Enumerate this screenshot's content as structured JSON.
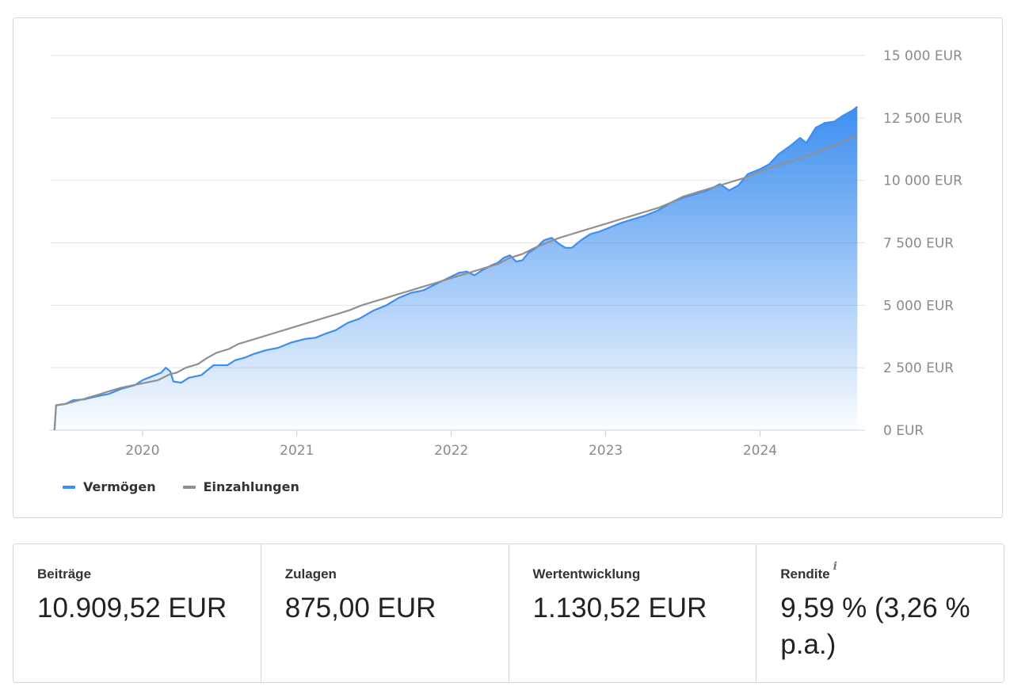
{
  "chart_data": {
    "type": "area",
    "x_ticks": [
      "2020",
      "2021",
      "2022",
      "2023",
      "2024"
    ],
    "y_ticks": [
      "15 000 EUR",
      "12 500 EUR",
      "10 000 EUR",
      "7 500 EUR",
      "5 000 EUR",
      "2 500 EUR",
      "0 EUR"
    ],
    "ylim": [
      0,
      15000
    ],
    "xlim": [
      2019.4,
      2024.68
    ],
    "legend_position": "bottom-left",
    "grid": true,
    "series": [
      {
        "name": "Vermögen",
        "color": "#3d8ef0",
        "fill": "gradient",
        "points": [
          [
            2019.43,
            0
          ],
          [
            2019.44,
            1000
          ],
          [
            2019.5,
            1050
          ],
          [
            2019.55,
            1200
          ],
          [
            2019.62,
            1230
          ],
          [
            2019.7,
            1350
          ],
          [
            2019.78,
            1450
          ],
          [
            2019.86,
            1650
          ],
          [
            2019.95,
            1800
          ],
          [
            2020.0,
            2000
          ],
          [
            2020.06,
            2150
          ],
          [
            2020.12,
            2300
          ],
          [
            2020.15,
            2500
          ],
          [
            2020.18,
            2350
          ],
          [
            2020.2,
            1950
          ],
          [
            2020.25,
            1900
          ],
          [
            2020.3,
            2100
          ],
          [
            2020.38,
            2200
          ],
          [
            2020.46,
            2600
          ],
          [
            2020.55,
            2600
          ],
          [
            2020.6,
            2800
          ],
          [
            2020.66,
            2900
          ],
          [
            2020.72,
            3050
          ],
          [
            2020.8,
            3200
          ],
          [
            2020.88,
            3300
          ],
          [
            2020.96,
            3500
          ],
          [
            2021.05,
            3650
          ],
          [
            2021.12,
            3700
          ],
          [
            2021.18,
            3850
          ],
          [
            2021.25,
            4000
          ],
          [
            2021.33,
            4300
          ],
          [
            2021.4,
            4450
          ],
          [
            2021.5,
            4800
          ],
          [
            2021.58,
            5000
          ],
          [
            2021.66,
            5300
          ],
          [
            2021.74,
            5500
          ],
          [
            2021.82,
            5600
          ],
          [
            2021.9,
            5850
          ],
          [
            2022.0,
            6150
          ],
          [
            2022.05,
            6300
          ],
          [
            2022.1,
            6350
          ],
          [
            2022.15,
            6200
          ],
          [
            2022.2,
            6400
          ],
          [
            2022.26,
            6600
          ],
          [
            2022.3,
            6700
          ],
          [
            2022.34,
            6900
          ],
          [
            2022.38,
            7000
          ],
          [
            2022.42,
            6750
          ],
          [
            2022.46,
            6800
          ],
          [
            2022.5,
            7100
          ],
          [
            2022.55,
            7300
          ],
          [
            2022.6,
            7600
          ],
          [
            2022.65,
            7700
          ],
          [
            2022.7,
            7450
          ],
          [
            2022.74,
            7300
          ],
          [
            2022.78,
            7300
          ],
          [
            2022.84,
            7600
          ],
          [
            2022.9,
            7850
          ],
          [
            2022.96,
            7950
          ],
          [
            2023.02,
            8100
          ],
          [
            2023.1,
            8300
          ],
          [
            2023.18,
            8450
          ],
          [
            2023.26,
            8600
          ],
          [
            2023.34,
            8800
          ],
          [
            2023.42,
            9100
          ],
          [
            2023.5,
            9300
          ],
          [
            2023.58,
            9450
          ],
          [
            2023.66,
            9600
          ],
          [
            2023.74,
            9850
          ],
          [
            2023.8,
            9600
          ],
          [
            2023.86,
            9800
          ],
          [
            2023.92,
            10250
          ],
          [
            2024.0,
            10450
          ],
          [
            2024.06,
            10650
          ],
          [
            2024.12,
            11050
          ],
          [
            2024.2,
            11400
          ],
          [
            2024.26,
            11700
          ],
          [
            2024.3,
            11500
          ],
          [
            2024.36,
            12100
          ],
          [
            2024.42,
            12300
          ],
          [
            2024.48,
            12350
          ],
          [
            2024.54,
            12600
          ],
          [
            2024.6,
            12800
          ],
          [
            2024.63,
            12950
          ]
        ]
      },
      {
        "name": "Einzahlungen",
        "color": "#909090",
        "fill": "none",
        "points": [
          [
            2019.43,
            0
          ],
          [
            2019.44,
            1000
          ],
          [
            2019.5,
            1050
          ],
          [
            2019.56,
            1150
          ],
          [
            2019.62,
            1250
          ],
          [
            2019.7,
            1400
          ],
          [
            2019.78,
            1550
          ],
          [
            2019.86,
            1700
          ],
          [
            2019.94,
            1800
          ],
          [
            2020.02,
            1900
          ],
          [
            2020.1,
            2000
          ],
          [
            2020.18,
            2250
          ],
          [
            2020.22,
            2300
          ],
          [
            2020.28,
            2500
          ],
          [
            2020.36,
            2650
          ],
          [
            2020.42,
            2900
          ],
          [
            2020.48,
            3100
          ],
          [
            2020.56,
            3250
          ],
          [
            2020.62,
            3450
          ],
          [
            2020.7,
            3600
          ],
          [
            2020.78,
            3750
          ],
          [
            2020.86,
            3900
          ],
          [
            2020.94,
            4050
          ],
          [
            2021.02,
            4200
          ],
          [
            2021.1,
            4350
          ],
          [
            2021.18,
            4500
          ],
          [
            2021.26,
            4650
          ],
          [
            2021.34,
            4800
          ],
          [
            2021.42,
            5000
          ],
          [
            2021.5,
            5150
          ],
          [
            2021.58,
            5300
          ],
          [
            2021.66,
            5450
          ],
          [
            2021.74,
            5600
          ],
          [
            2021.82,
            5750
          ],
          [
            2021.9,
            5900
          ],
          [
            2021.98,
            6050
          ],
          [
            2022.06,
            6200
          ],
          [
            2022.14,
            6350
          ],
          [
            2022.22,
            6500
          ],
          [
            2022.3,
            6650
          ],
          [
            2022.38,
            6900
          ],
          [
            2022.46,
            7050
          ],
          [
            2022.54,
            7300
          ],
          [
            2022.62,
            7500
          ],
          [
            2022.7,
            7700
          ],
          [
            2022.78,
            7850
          ],
          [
            2022.86,
            8000
          ],
          [
            2022.94,
            8150
          ],
          [
            2023.02,
            8300
          ],
          [
            2023.1,
            8450
          ],
          [
            2023.18,
            8600
          ],
          [
            2023.26,
            8750
          ],
          [
            2023.34,
            8900
          ],
          [
            2023.42,
            9100
          ],
          [
            2023.5,
            9350
          ],
          [
            2023.58,
            9500
          ],
          [
            2023.66,
            9650
          ],
          [
            2023.74,
            9800
          ],
          [
            2023.82,
            9950
          ],
          [
            2023.9,
            10100
          ],
          [
            2023.98,
            10300
          ],
          [
            2024.06,
            10500
          ],
          [
            2024.14,
            10650
          ],
          [
            2024.22,
            10800
          ],
          [
            2024.3,
            10950
          ],
          [
            2024.38,
            11150
          ],
          [
            2024.46,
            11350
          ],
          [
            2024.54,
            11550
          ],
          [
            2024.63,
            11800
          ]
        ]
      }
    ]
  },
  "stats": [
    {
      "label": "Beiträge",
      "value": "10.909,52 EUR"
    },
    {
      "label": "Zulagen",
      "value": "875,00 EUR"
    },
    {
      "label": "Wertentwicklung",
      "value": "1.130,52 EUR"
    },
    {
      "label": "Rendite",
      "value": "9,59 % (3,26 % p.a.)",
      "info_icon": "i"
    }
  ]
}
